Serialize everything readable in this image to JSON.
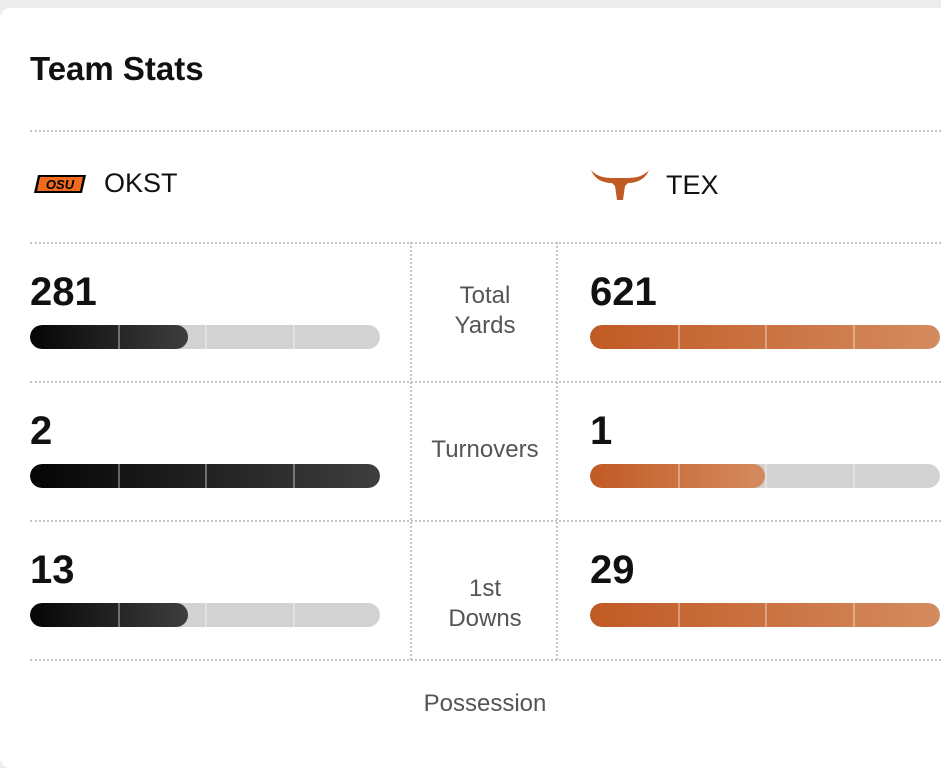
{
  "title": "Team Stats",
  "teams": [
    {
      "abbr": "OKST",
      "logo": "osu-logo",
      "color": "#000000"
    },
    {
      "abbr": "TEX",
      "logo": "longhorn-logo",
      "color": "#c05a24"
    }
  ],
  "stats": [
    {
      "label": "Total Yards",
      "left": "281",
      "right": "621",
      "left_fill": 0.45,
      "right_fill": 1.0
    },
    {
      "label": "Turnovers",
      "left": "2",
      "right": "1",
      "left_fill": 1.0,
      "right_fill": 0.5
    },
    {
      "label": "1st Downs",
      "left": "13",
      "right": "29",
      "left_fill": 0.45,
      "right_fill": 1.0
    }
  ],
  "next_stat_label": "Possession"
}
